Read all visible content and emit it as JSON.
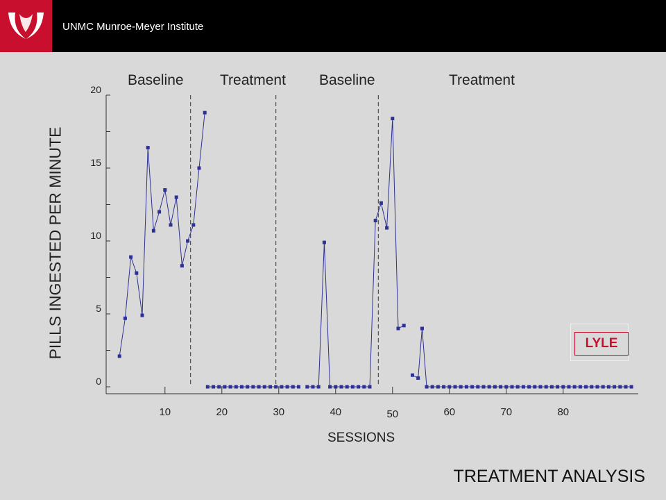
{
  "header": {
    "org": "UNMC Munroe-Meyer Institute"
  },
  "footer": {
    "title": "TREATMENT ANALYSIS"
  },
  "subject_label": "LYLE",
  "phases": [
    "Baseline",
    "Treatment",
    "Baseline",
    "Treatment"
  ],
  "colors": {
    "brand": "#c8102e",
    "series": "#2e3192"
  },
  "chart_data": {
    "type": "line",
    "title": "",
    "xlabel": "SESSIONS",
    "ylabel": "PILLS INGESTED PER MINUTE",
    "ylim": [
      0,
      20
    ],
    "yticks": [
      0,
      5,
      10,
      15,
      20
    ],
    "xticks": [
      10,
      20,
      30,
      40,
      50,
      60,
      70,
      80
    ],
    "phase_change_lines": [
      14.5,
      29.5,
      47.5
    ],
    "grid": false,
    "series": [
      {
        "name": "",
        "points": [
          [
            2,
            2.1
          ],
          [
            3,
            4.7
          ],
          [
            4,
            8.9
          ],
          [
            5,
            7.8
          ],
          [
            6,
            4.9
          ],
          [
            7,
            16.4
          ],
          [
            8,
            10.7
          ],
          [
            9,
            12
          ],
          [
            10,
            13.5
          ],
          [
            11,
            11.1
          ],
          [
            12,
            13
          ],
          [
            13,
            8.3
          ],
          [
            14,
            10
          ],
          [
            15,
            11.1
          ],
          [
            16,
            15
          ],
          [
            17,
            18.8
          ],
          [
            17.5,
            0
          ],
          [
            18.5,
            0
          ],
          [
            19.5,
            0
          ],
          [
            20.5,
            0
          ],
          [
            21.5,
            0
          ],
          [
            22.5,
            0
          ],
          [
            23.5,
            0
          ],
          [
            24.5,
            0
          ],
          [
            25.5,
            0
          ],
          [
            26.5,
            0
          ],
          [
            27.5,
            0
          ],
          [
            28.5,
            0
          ],
          [
            29.5,
            0
          ],
          [
            30.5,
            0
          ],
          [
            31.5,
            0
          ],
          [
            32.5,
            0
          ],
          [
            33.5,
            0
          ],
          [
            35,
            0
          ],
          [
            36,
            0
          ],
          [
            37,
            0
          ],
          [
            38,
            9.9
          ],
          [
            39,
            0
          ],
          [
            40,
            0
          ],
          [
            41,
            0
          ],
          [
            42,
            0
          ],
          [
            43,
            0
          ],
          [
            44,
            0
          ],
          [
            45,
            0
          ],
          [
            46,
            0
          ],
          [
            47,
            11.4
          ],
          [
            48,
            12.6
          ],
          [
            49,
            10.9
          ],
          [
            50,
            18.4
          ],
          [
            51,
            4
          ],
          [
            52,
            4.2
          ],
          [
            53.5,
            0.8
          ],
          [
            54.5,
            0.6
          ],
          [
            55.2,
            4
          ],
          [
            56,
            0
          ],
          [
            57,
            0
          ],
          [
            58,
            0
          ],
          [
            59,
            0
          ],
          [
            60,
            0
          ],
          [
            61,
            0
          ],
          [
            62,
            0
          ],
          [
            63,
            0
          ],
          [
            64,
            0
          ],
          [
            65,
            0
          ],
          [
            66,
            0
          ],
          [
            67,
            0
          ],
          [
            68,
            0
          ],
          [
            69,
            0
          ],
          [
            70,
            0
          ],
          [
            71,
            0
          ],
          [
            72,
            0
          ],
          [
            73,
            0
          ],
          [
            74,
            0
          ],
          [
            75,
            0
          ],
          [
            76,
            0
          ],
          [
            77,
            0
          ],
          [
            78,
            0
          ],
          [
            79,
            0
          ],
          [
            80,
            0
          ],
          [
            81,
            0
          ],
          [
            82,
            0
          ],
          [
            83,
            0
          ],
          [
            84,
            0
          ],
          [
            85,
            0
          ],
          [
            86,
            0
          ],
          [
            87,
            0
          ],
          [
            88,
            0
          ],
          [
            89,
            0
          ],
          [
            90,
            0
          ],
          [
            91,
            0
          ],
          [
            92,
            0
          ]
        ]
      }
    ]
  }
}
